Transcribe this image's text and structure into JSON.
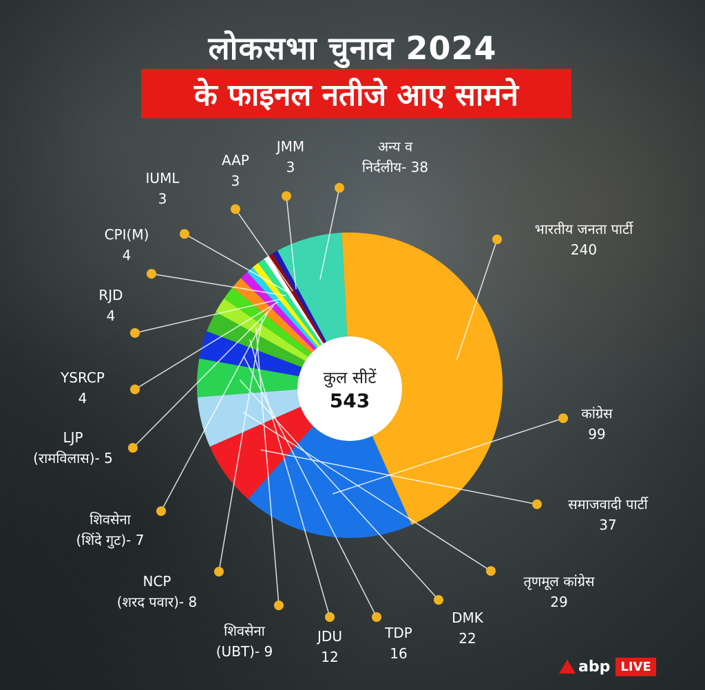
{
  "header": {
    "line1": "लोकसभा चुनाव 2024",
    "line2": "के फाइनल नतीजे आए सामने"
  },
  "chart_data": {
    "type": "pie",
    "center_label": "कुल सीटें",
    "center_value": "543",
    "start_angle_deg": -3,
    "slices": [
      {
        "name": "भारतीय जनता पार्टी",
        "value": 240,
        "color": "#ffaf17",
        "label_lines": [
          "भारतीय जनता पार्टी",
          "240"
        ]
      },
      {
        "name": "कांग्रेस",
        "value": 99,
        "color": "#1a74e8",
        "label_lines": [
          "कांग्रेस",
          "99"
        ]
      },
      {
        "name": "समाजवादी पार्टी",
        "value": 37,
        "color": "#f21c24",
        "label_lines": [
          "समाजवादी पार्टी",
          "37"
        ]
      },
      {
        "name": "तृणमूल कांग्रेस",
        "value": 29,
        "color": "#a9daf3",
        "label_lines": [
          "तृणमूल कांग्रेस",
          "29"
        ]
      },
      {
        "name": "DMK",
        "value": 22,
        "color": "#2bd352",
        "label_lines": [
          "DMK",
          "22"
        ]
      },
      {
        "name": "TDP",
        "value": 16,
        "color": "#1334e3",
        "label_lines": [
          "TDP",
          "16"
        ]
      },
      {
        "name": "JDU",
        "value": 12,
        "color": "#3dbd28",
        "label_lines": [
          "JDU",
          "12"
        ]
      },
      {
        "name": "शिवसेना (UBT)",
        "value": 9,
        "color": "#a7f02c",
        "label_lines": [
          "शिवसेना",
          "(UBT)- 9"
        ]
      },
      {
        "name": "NCP (शरद पवार)",
        "value": 8,
        "color": "#4de01c",
        "label_lines": [
          "NCP",
          "(शरद पवार)- 8"
        ]
      },
      {
        "name": "शिवसेना (शिंदे गुट)",
        "value": 7,
        "color": "#ff8f1a",
        "label_lines": [
          "शिवसेना",
          "(शिंदे गुट)- 7"
        ]
      },
      {
        "name": "LJP (रामविलास)",
        "value": 5,
        "color": "#d21ff0",
        "label_lines": [
          "LJP",
          "(रामविलास)- 5"
        ]
      },
      {
        "name": "YSRCP",
        "value": 4,
        "color": "#27d3ee",
        "label_lines": [
          "YSRCP",
          "4"
        ]
      },
      {
        "name": "RJD",
        "value": 4,
        "color": "#f4f40f",
        "label_lines": [
          "RJD",
          "4"
        ]
      },
      {
        "name": "CPI(M)",
        "value": 4,
        "color": "#2ae68f",
        "label_lines": [
          "CPI(M)",
          "4"
        ]
      },
      {
        "name": "IUML",
        "value": 3,
        "color": "#ffffff",
        "label_lines": [
          "IUML",
          "3"
        ]
      },
      {
        "name": "AAP",
        "value": 3,
        "color": "#8e0f10",
        "label_lines": [
          "AAP",
          "3"
        ]
      },
      {
        "name": "JMM",
        "value": 3,
        "color": "#1a1ab8",
        "label_lines": [
          "JMM",
          "3"
        ]
      },
      {
        "name": "अन्य व निर्दलीय",
        "value": 38,
        "color": "#3cd6b0",
        "label_lines": [
          "अन्य व",
          "निर्दलीय- 38"
        ]
      }
    ]
  },
  "branding": {
    "logo_text": "abp",
    "live_text": "LIVE",
    "accent": "#e41b17",
    "leader_color": "#f2b321"
  }
}
